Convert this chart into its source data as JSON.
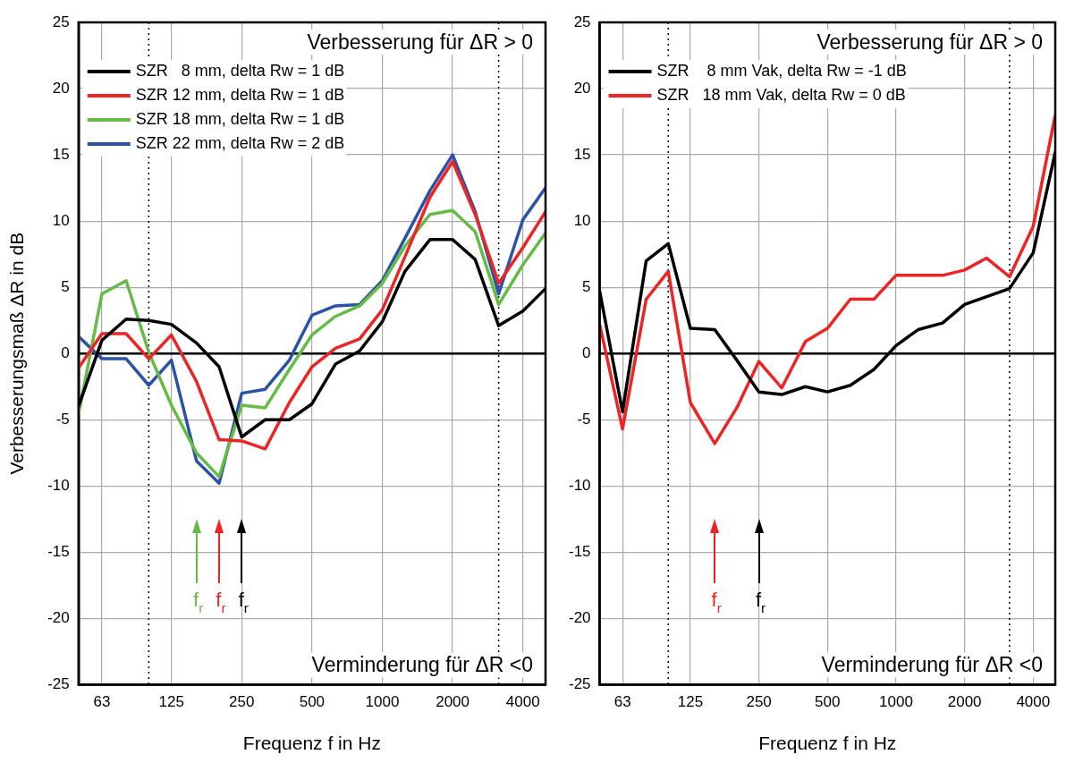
{
  "chart_data": [
    {
      "type": "line",
      "xlabel": "Frequenz f in Hz",
      "ylabel": "Verbesserungsmaß ΔR in dB",
      "log": "x",
      "grid": true,
      "legend": "top left",
      "marker": "none",
      "line_style": "solid",
      "x": [
        50,
        63,
        80,
        100,
        125,
        160,
        200,
        250,
        315,
        400,
        500,
        630,
        800,
        1000,
        1250,
        1600,
        2000,
        2500,
        3150,
        4000,
        5000
      ],
      "xlim": [
        50,
        5000
      ],
      "xticks": [
        63,
        125,
        250,
        500,
        1000,
        2000,
        4000
      ],
      "ylim": [
        -25,
        25
      ],
      "yticks": [
        -25,
        -20,
        -15,
        -10,
        -5,
        0,
        5,
        10,
        15,
        20,
        25
      ],
      "series": [
        {
          "name": "SZR   8 mm, delta Rw = 1 dB",
          "color": "#000000",
          "values": [
            -4,
            1,
            2.6,
            2.5,
            2.2,
            0.8,
            -1,
            -6.3,
            -5,
            -5,
            -3.8,
            -0.8,
            0.2,
            2.4,
            6.2,
            8.6,
            8.6,
            7.1,
            2.1,
            3.2,
            4.9
          ]
        },
        {
          "name": "SZR 12 mm, delta Rw = 1 dB",
          "color": "#ee2424",
          "values": [
            -1.1,
            1.5,
            1.5,
            -0.4,
            1.4,
            -2.1,
            -6.5,
            -6.6,
            -7.2,
            -3.7,
            -1,
            0.4,
            1.1,
            3.3,
            7.3,
            11.8,
            14.5,
            10.5,
            5.3,
            8,
            10.7
          ]
        },
        {
          "name": "SZR 18 mm, delta Rw = 1 dB",
          "color": "#66bb44",
          "values": [
            -4.6,
            4.5,
            5.5,
            0.1,
            -3.9,
            -7.5,
            -9.3,
            -3.9,
            -4.1,
            -1.2,
            1.4,
            2.8,
            3.6,
            5.3,
            8.1,
            10.5,
            10.8,
            9.2,
            3.7,
            6.7,
            9.1
          ]
        },
        {
          "name": "SZR 22 mm, delta Rw = 2 dB",
          "color": "#2a52a8",
          "values": [
            1.3,
            -0.4,
            -0.4,
            -2.4,
            -0.5,
            -8.1,
            -9.8,
            -3,
            -2.7,
            -0.5,
            2.9,
            3.6,
            3.7,
            5.5,
            8.7,
            12.3,
            15,
            10.7,
            4.5,
            10.1,
            12.5
          ]
        }
      ],
      "ref_lines": [
        {
          "axis": "x",
          "value": 100,
          "color": "#000000",
          "line_style": "dotted"
        },
        {
          "axis": "x",
          "value": 3150,
          "color": "#000000",
          "line_style": "dotted"
        },
        {
          "axis": "y",
          "value": 0,
          "color": "#000000",
          "line_style": "solid"
        }
      ],
      "annotations": [
        "Verbesserung für ΔR > 0",
        "Verminderung für ΔR <0",
        {
          "text": "f$_{r}$",
          "x": 160
        },
        {
          "text": "f$_{r}$",
          "x": 200
        },
        {
          "text": "f$_{r}$",
          "x": 250
        }
      ]
    },
    {
      "type": "line",
      "xlabel": "Frequenz f in Hz",
      "log": "x",
      "grid": true,
      "legend": "top left",
      "marker": "none",
      "line_style": "solid",
      "x": [
        50,
        63,
        80,
        100,
        125,
        160,
        200,
        250,
        315,
        400,
        500,
        630,
        800,
        1000,
        1250,
        1600,
        2000,
        2500,
        3150,
        4000,
        5000
      ],
      "xlim": [
        50,
        5000
      ],
      "xticks": [
        63,
        125,
        250,
        500,
        1000,
        2000,
        4000
      ],
      "ylim": [
        -25,
        25
      ],
      "yticks": [
        -25,
        -20,
        -15,
        -10,
        -5,
        0,
        5,
        10,
        15,
        20,
        25
      ],
      "series": [
        {
          "name": "SZR    8 mm Vak, delta Rw = -1 dB",
          "color": "#000000",
          "values": [
            4.7,
            -4.4,
            7,
            8.3,
            1.9,
            1.8,
            -0.5,
            -2.9,
            -3.1,
            -2.5,
            -2.9,
            -2.4,
            -1.2,
            0.6,
            1.8,
            2.3,
            3.7,
            4.3,
            4.9,
            7.6,
            15.2
          ]
        },
        {
          "name": "SZR   18 mm Vak, delta Rw = 0 dB",
          "color": "#ee2424",
          "values": [
            2.2,
            -5.7,
            4.1,
            6.2,
            -3.7,
            -6.8,
            -4.1,
            -0.6,
            -2.6,
            0.9,
            1.9,
            4.1,
            4.1,
            5.9,
            5.9,
            5.9,
            6.3,
            7.2,
            5.8,
            9.6,
            18
          ]
        }
      ],
      "ref_lines": [
        {
          "axis": "x",
          "value": 100,
          "color": "#000000",
          "line_style": "dotted"
        },
        {
          "axis": "x",
          "value": 3150,
          "color": "#000000",
          "line_style": "dotted"
        },
        {
          "axis": "y",
          "value": 0,
          "color": "#000000",
          "line_style": "solid"
        }
      ],
      "annotations": [
        "Verbesserung für ΔR > 0",
        "Verminderung für ΔR <0",
        {
          "text": "f$_{r}$",
          "x": 160
        },
        {
          "text": "f$_{r}$",
          "x": 250
        }
      ]
    }
  ]
}
